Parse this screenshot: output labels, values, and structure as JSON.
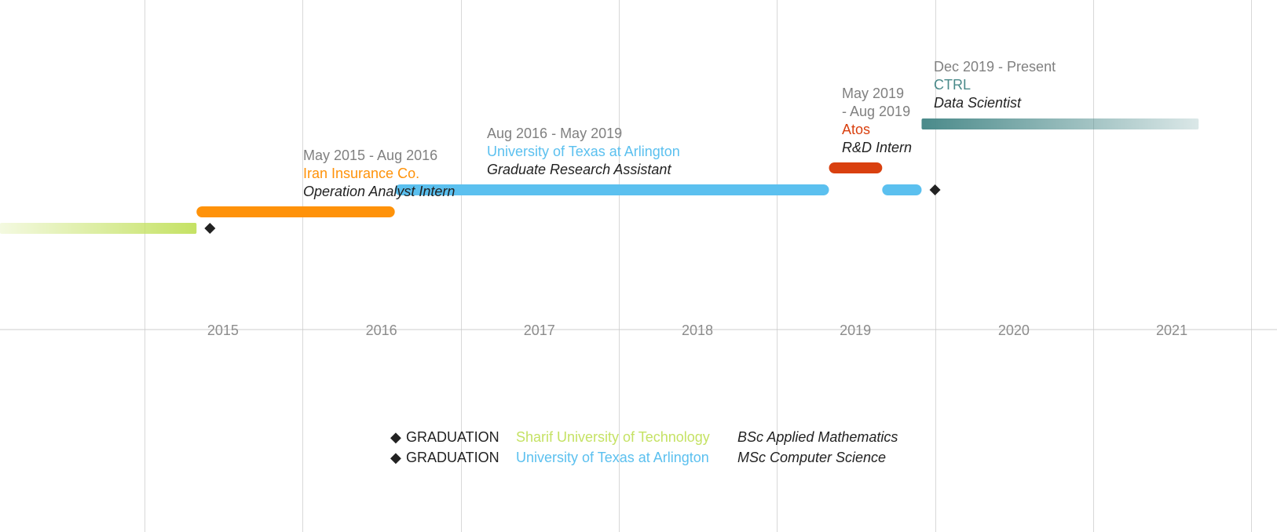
{
  "chart_data": {
    "type": "timeline",
    "x_range": [
      "2014-02-01",
      "2022-03-01"
    ],
    "x_ticks": [
      "2015",
      "2016",
      "2017",
      "2018",
      "2019",
      "2020",
      "2021"
    ],
    "grid": true,
    "colors": {
      "sharif": "#c5e264",
      "iran_insurance": "#ff9209",
      "uta": "#5bc0ef",
      "atos": "#d9400f",
      "ctrl": "#4a8a8a",
      "milestone": "#222222",
      "date_text": "#808080",
      "role_text": "#222222"
    },
    "periods": [
      {
        "id": "sharif",
        "start": "2013-03-01",
        "end": "2015-05-01",
        "color": "#c5e264",
        "fade": "start",
        "labeled": false
      },
      {
        "id": "iran",
        "start": "2015-05-01",
        "end": "2016-08-01",
        "color": "#ff9209",
        "fade": "none",
        "labeled": true,
        "date_label": "May 2015 - Aug 2016",
        "org": "Iran Insurance Co.",
        "role": "Operation Analyst Intern"
      },
      {
        "id": "uta",
        "start": "2016-08-01",
        "end": "2019-05-01",
        "color": "#5bc0ef",
        "fade": "none",
        "labeled": true,
        "date_label": "Aug 2016 - May 2019",
        "org": "University of Texas at Arlington",
        "role": "Graduate Research Assistant"
      },
      {
        "id": "uta2",
        "start": "2019-09-01",
        "end": "2019-12-01",
        "color": "#5bc0ef",
        "fade": "none",
        "labeled": false
      },
      {
        "id": "atos",
        "start": "2019-05-01",
        "end": "2019-09-01",
        "color": "#d9400f",
        "fade": "none",
        "labeled": true,
        "date_label_lines": [
          "May 2019",
          "- Aug 2019"
        ],
        "org": "Atos",
        "role": "R&D Intern"
      },
      {
        "id": "ctrl",
        "start": "2019-12-01",
        "end": "2021-09-01",
        "color": "#4a8a8a",
        "fade": "end",
        "labeled": true,
        "date_label": "Dec 2019 - Present",
        "org": "CTRL",
        "role": "Data Scientist"
      }
    ],
    "milestones": [
      {
        "date": "2015-06-01",
        "type": "GRADUATION",
        "lane": "sharif"
      },
      {
        "date": "2020-01-01",
        "type": "GRADUATION",
        "lane": "uta2"
      }
    ],
    "legend": [
      {
        "symbol": "◆",
        "type": "GRADUATION",
        "institution": "Sharif University of Technology",
        "degree": "BSc Applied Mathematics",
        "color": "#c5e264"
      },
      {
        "symbol": "◆",
        "type": "GRADUATION",
        "institution": "University of Texas at Arlington",
        "degree": "MSc Computer Science",
        "color": "#5bc0ef"
      }
    ]
  }
}
